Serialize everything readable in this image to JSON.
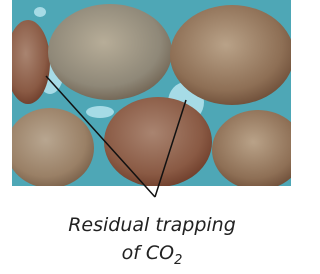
{
  "caption": {
    "line1": "Residual trapping",
    "line2": "of CO",
    "subscript": "2"
  }
}
